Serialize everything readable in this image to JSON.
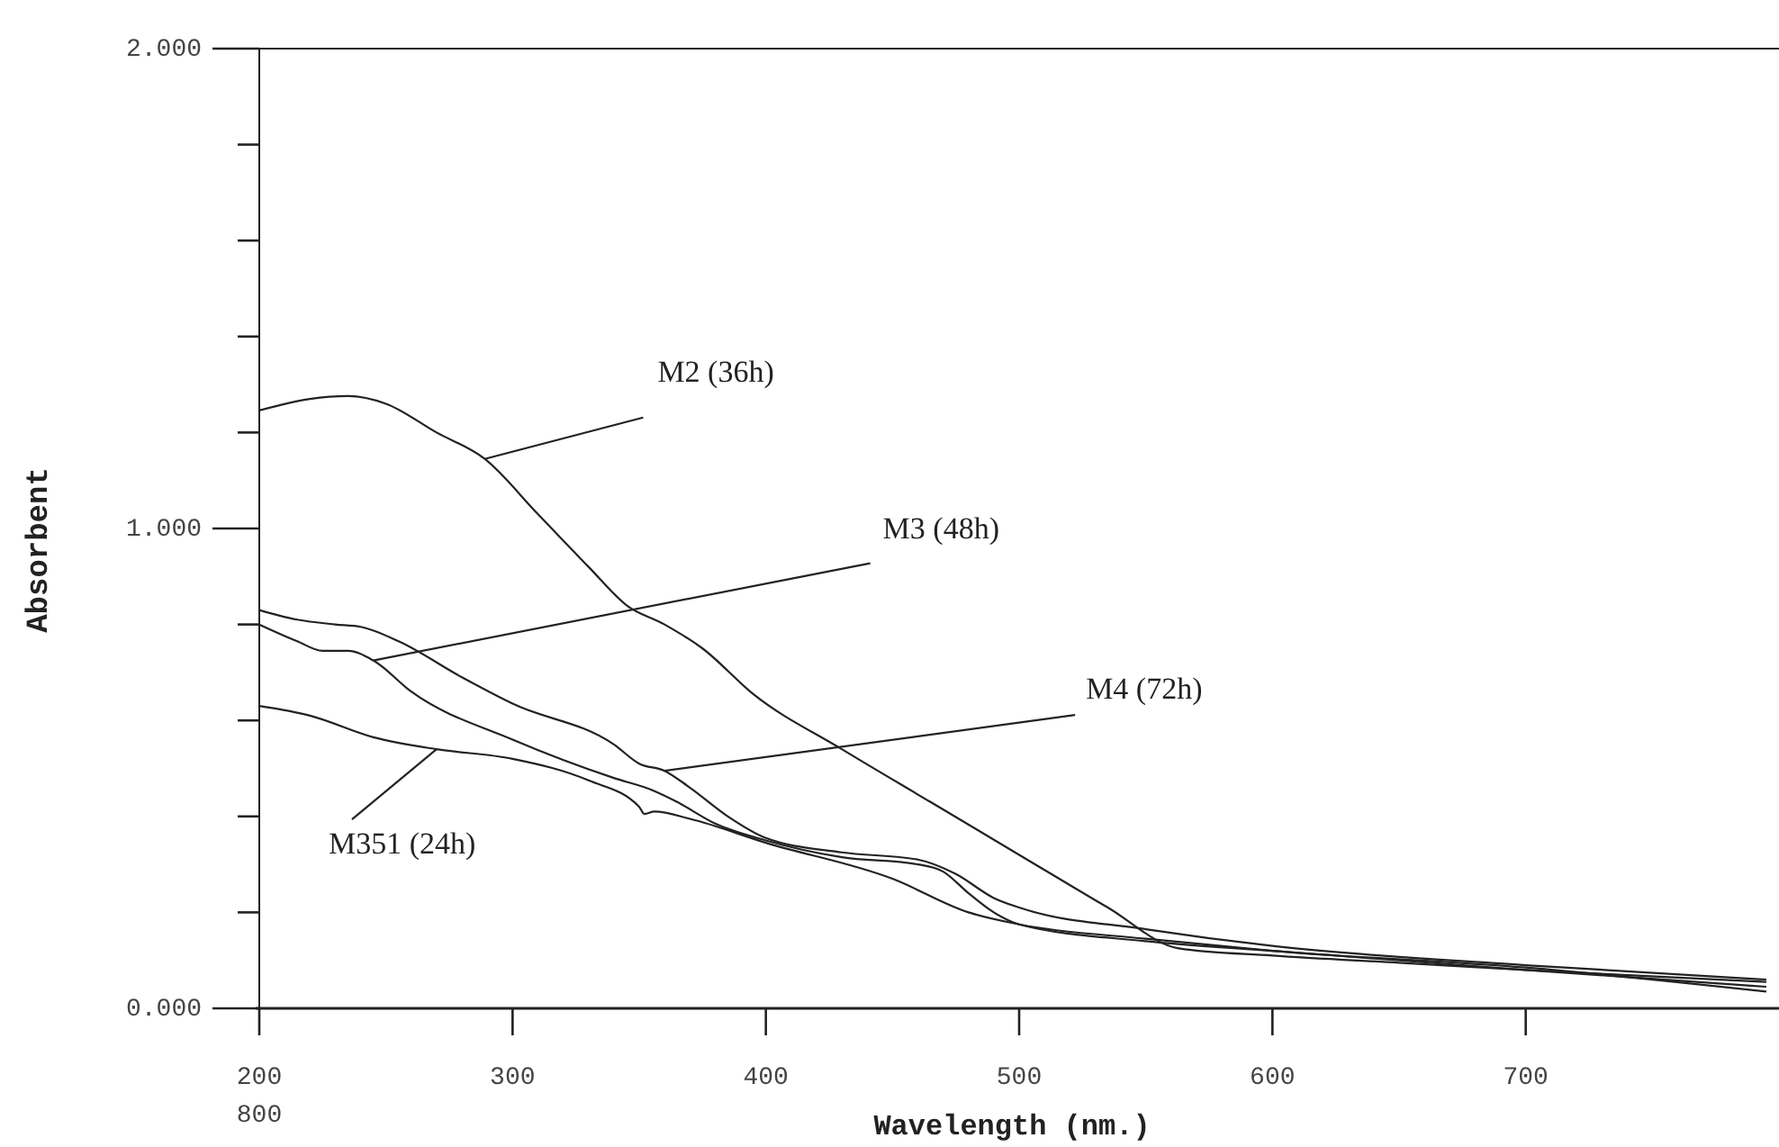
{
  "chart_data": {
    "type": "line",
    "xlabel": "Wavelength (nm.)",
    "ylabel": "Absorbent",
    "xlim": [
      200,
      800
    ],
    "xticks": [
      200,
      300,
      400,
      500,
      600,
      700
    ],
    "ylim": [
      0,
      2
    ],
    "yticks": [
      {
        "value": 0,
        "label": "0.000"
      },
      {
        "value": 0.2,
        "label": null
      },
      {
        "value": 0.4,
        "label": null
      },
      {
        "value": 0.6,
        "label": null
      },
      {
        "value": 0.8,
        "label": null
      },
      {
        "value": 1,
        "label": "1.000"
      },
      {
        "value": 1.2,
        "label": null
      },
      {
        "value": 1.4,
        "label": null
      },
      {
        "value": 1.6,
        "label": null
      },
      {
        "value": 1.8,
        "label": null
      },
      {
        "value": 2,
        "label": "2.000"
      }
    ],
    "grid": false,
    "marker": "none",
    "line_style": "solid",
    "annotations": [
      "800",
      {
        "text": "M2 (36h)",
        "x": 289,
        "y": 1.145
      },
      {
        "text": "M3 (48h)",
        "x": 245,
        "y": 0.725
      },
      {
        "text": "M4 (72h)",
        "x": 360,
        "y": 0.495
      },
      {
        "text": "M351 (24h)",
        "x": 270,
        "y": 0.54
      }
    ],
    "series": [
      {
        "color": "#222222",
        "x": [
          200,
          220,
          235,
          250,
          270,
          289,
          310,
          330,
          345,
          360,
          375,
          395,
          430,
          465,
          500,
          535,
          563,
          600,
          650,
          700,
          795
        ],
        "values": [
          1.246,
          1.27,
          1.276,
          1.26,
          1.2,
          1.145,
          1.03,
          0.92,
          0.84,
          0.8,
          0.75,
          0.655,
          0.54,
          0.43,
          0.32,
          0.21,
          0.125,
          0.11,
          0.095,
          0.08,
          0.055
        ]
      },
      {
        "color": "#222222",
        "x": [
          200,
          215,
          225,
          235,
          245,
          260,
          300,
          340,
          355,
          365,
          380,
          400,
          430,
          460,
          470,
          480,
          490,
          500,
          550,
          600,
          700,
          795
        ],
        "values": [
          0.8,
          0.765,
          0.745,
          0.745,
          0.725,
          0.66,
          0.56,
          0.48,
          0.455,
          0.43,
          0.385,
          0.35,
          0.315,
          0.3,
          0.285,
          0.24,
          0.2,
          0.175,
          0.14,
          0.12,
          0.08,
          0.045
        ]
      },
      {
        "color": "#222222",
        "x": [
          200,
          215,
          230,
          240,
          255,
          280,
          300,
          340,
          350,
          360,
          370,
          385,
          400,
          430,
          460,
          475,
          490,
          500,
          550,
          600,
          700,
          795
        ],
        "values": [
          0.83,
          0.81,
          0.8,
          0.795,
          0.765,
          0.69,
          0.635,
          0.55,
          0.51,
          0.495,
          0.46,
          0.4,
          0.355,
          0.325,
          0.31,
          0.28,
          0.23,
          0.21,
          0.165,
          0.13,
          0.09,
          0.06
        ]
      },
      {
        "color": "#222222",
        "x": [
          200,
          220,
          245,
          270,
          300,
          330,
          350,
          352,
          356,
          370,
          400,
          450,
          480,
          500,
          550,
          600,
          700,
          795
        ],
        "values": [
          0.63,
          0.61,
          0.565,
          0.54,
          0.52,
          0.475,
          0.42,
          0.405,
          0.41,
          0.395,
          0.345,
          0.27,
          0.2,
          0.175,
          0.145,
          0.12,
          0.085,
          0.035
        ]
      }
    ]
  }
}
